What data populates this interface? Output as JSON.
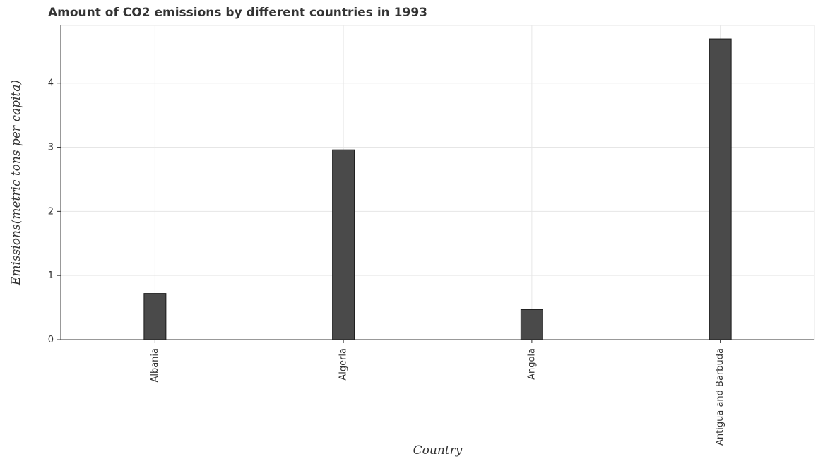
{
  "chart_data": {
    "type": "bar",
    "title": "Amount of CO2 emissions by different countries in 1993",
    "xlabel": "Country",
    "ylabel": "Emissions(metric tons per capita)",
    "categories": [
      "Albania",
      "Algeria",
      "Angola",
      "Antigua and Barbuda"
    ],
    "values": [
      0.72,
      2.96,
      0.47,
      4.69
    ],
    "ylim": [
      0,
      4.9
    ],
    "yticks": [
      0,
      1,
      2,
      3,
      4
    ],
    "ytick_labels": [
      "0",
      "1",
      "2",
      "3",
      "4"
    ],
    "grid": true,
    "bar_color": "#4a4a4a",
    "bar_edge_color": "#1a1a1a"
  }
}
